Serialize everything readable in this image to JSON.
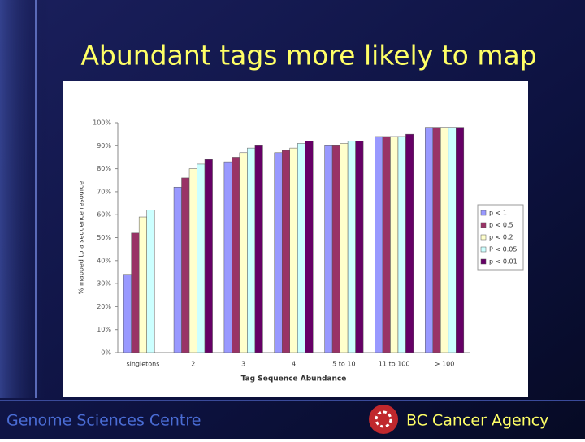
{
  "slide_title": "Abundant tags more likely to map",
  "footer_left": "Genome Sciences Centre",
  "footer_right": "BC Cancer Agency",
  "chart_data": {
    "type": "bar",
    "x_label": "Tag Sequence Abundance",
    "y_label": "% mapped to a sequence resource",
    "categories": [
      "singletons",
      "2",
      "3",
      "4",
      "5 to 10",
      "11 to 100",
      "> 100"
    ],
    "series": [
      {
        "name": "p < 1",
        "color": "#9999ff",
        "values": [
          34,
          72,
          83,
          87,
          90,
          94,
          98
        ]
      },
      {
        "name": "p < 0.5",
        "color": "#993366",
        "values": [
          52,
          76,
          85,
          88,
          90,
          94,
          98
        ]
      },
      {
        "name": "p < 0.2",
        "color": "#ffffcc",
        "values": [
          59,
          80,
          87,
          89,
          91,
          94,
          98
        ]
      },
      {
        "name": "P < 0.05",
        "color": "#ccffff",
        "values": [
          62,
          82,
          89,
          91,
          92,
          94,
          98
        ]
      },
      {
        "name": "p < 0.01",
        "color": "#660066",
        "values": [
          null,
          84,
          90,
          92,
          92,
          95,
          98
        ]
      }
    ],
    "ylim": [
      0,
      100
    ],
    "yticks": [
      {
        "value": 0,
        "label": "0%"
      },
      {
        "value": 10,
        "label": "10%"
      },
      {
        "value": 20,
        "label": "20%"
      },
      {
        "value": 30,
        "label": "30%"
      },
      {
        "value": 40,
        "label": "40%"
      },
      {
        "value": 50,
        "label": "50%"
      },
      {
        "value": 60,
        "label": "60%"
      },
      {
        "value": 70,
        "label": "70%"
      },
      {
        "value": 80,
        "label": "80%"
      },
      {
        "value": 90,
        "label": "90%"
      },
      {
        "value": 100,
        "label": "100%"
      }
    ],
    "grid": false,
    "legend": "right"
  }
}
